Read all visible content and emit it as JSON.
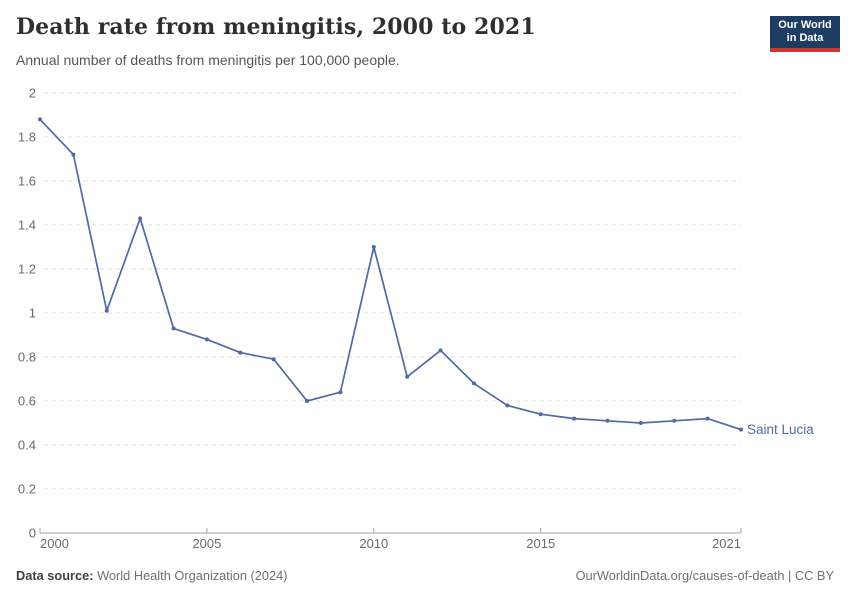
{
  "header": {
    "title": "Death rate from meningitis, 2000 to 2021",
    "subtitle": "Annual number of deaths from meningitis per 100,000 people.",
    "logo": {
      "line1": "Our World",
      "line2": "in Data",
      "bg_color": "#1d3d63",
      "accent_color": "#cd3731"
    }
  },
  "chart_data": {
    "type": "line",
    "title": "Death rate from meningitis, 2000 to 2021",
    "xlabel": "",
    "ylabel": "",
    "xlim": [
      2000,
      2021
    ],
    "ylim": [
      0,
      2
    ],
    "x_ticks": [
      2000,
      2005,
      2010,
      2015,
      2021
    ],
    "y_ticks": [
      0,
      0.2,
      0.4,
      0.6,
      0.8,
      1,
      1.2,
      1.4,
      1.6,
      1.8,
      2
    ],
    "grid": "horizontal-dashed",
    "legend_position": "end-of-line-label",
    "series": [
      {
        "name": "Saint Lucia",
        "color": "#4f6aa5",
        "x": [
          2000,
          2001,
          2002,
          2003,
          2004,
          2005,
          2006,
          2007,
          2008,
          2009,
          2010,
          2011,
          2012,
          2013,
          2014,
          2015,
          2016,
          2017,
          2018,
          2019,
          2020,
          2021
        ],
        "values": [
          1.88,
          1.72,
          1.01,
          1.43,
          0.93,
          0.88,
          0.82,
          0.79,
          0.6,
          0.64,
          1.3,
          0.71,
          0.83,
          0.68,
          0.58,
          0.54,
          0.52,
          0.51,
          0.5,
          0.51,
          0.52,
          0.47
        ]
      }
    ]
  },
  "footer": {
    "source_label": "Data source:",
    "source_text": " World Health Organization (2024)",
    "attribution": "OurWorldinData.org/causes-of-death | CC BY"
  }
}
